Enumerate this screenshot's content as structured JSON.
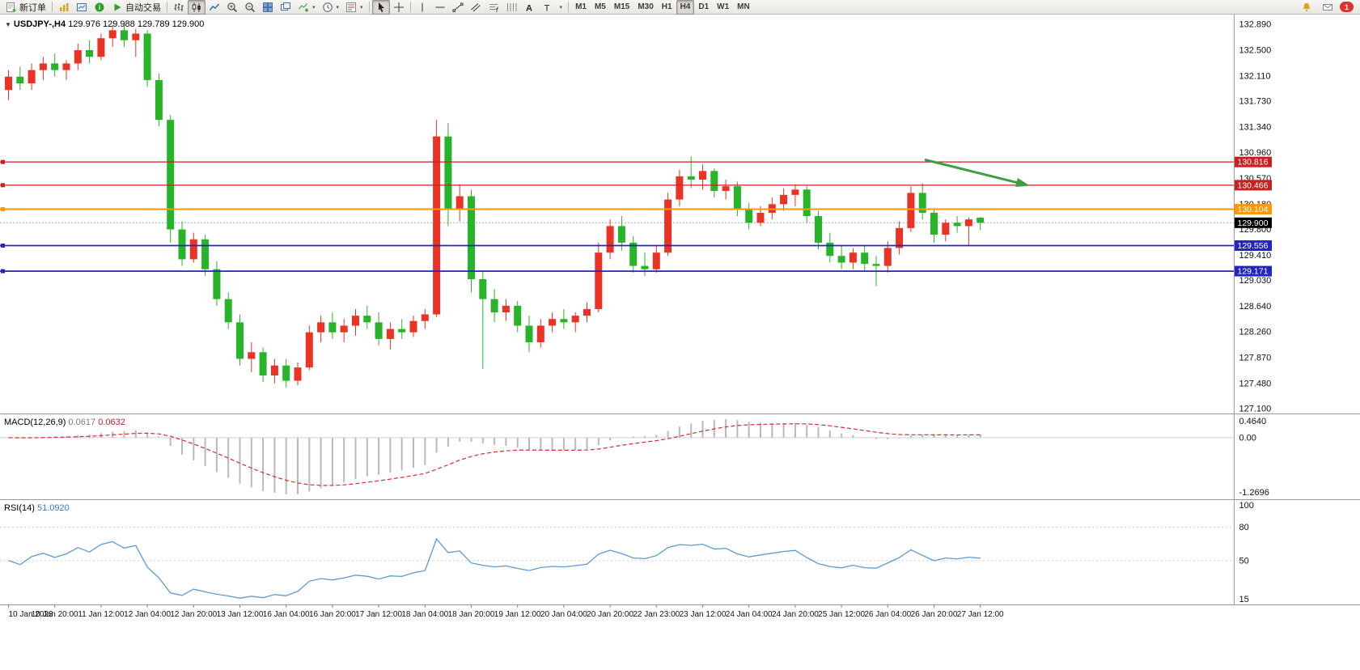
{
  "toolbar": {
    "new_order_label": "新订单",
    "autotrading_label": "自动交易",
    "timeframes": [
      "M1",
      "M5",
      "M15",
      "M30",
      "H1",
      "H4",
      "D1",
      "W1",
      "MN"
    ],
    "active_timeframe": "H4",
    "notification_count": "1"
  },
  "chart": {
    "title_symbol": "USDJPY-,H4",
    "title_ohlc": "129.976 129.988 129.789 129.900",
    "price_ticks": [
      "132.890",
      "132.500",
      "132.110",
      "131.730",
      "131.340",
      "130.960",
      "130.570",
      "130.180",
      "129.800",
      "129.410",
      "129.030",
      "128.640",
      "128.260",
      "127.870",
      "127.480",
      "127.100"
    ]
  },
  "current_price": {
    "value": 129.9,
    "label": "129.900",
    "color": "#000000"
  },
  "hlines": [
    {
      "price": 130.816,
      "label": "130.816",
      "color": "#c92121",
      "width": 1.2
    },
    {
      "price": 130.466,
      "label": "130.466",
      "color": "#c92121",
      "width": 1.2
    },
    {
      "price": 130.104,
      "label": "130.104",
      "color": "#ff9800",
      "width": 2
    },
    {
      "price": 129.556,
      "label": "129.556",
      "color": "#2424c4",
      "width": 1.8
    },
    {
      "price": 129.171,
      "label": "129.171",
      "color": "#2424c4",
      "width": 1.8
    }
  ],
  "trend_arrow": {
    "from_bar": 79.2,
    "from_price": 130.85,
    "to_bar": 88,
    "to_price": 130.47,
    "color": "#3f9e3f"
  },
  "colors": {
    "bull": "#ea3325",
    "bear": "#28b428",
    "macd_hist": "#b9b9b9",
    "macd_signal": "#d92b2b",
    "rsi_line": "#5b9bd5"
  },
  "indicators": {
    "macd": {
      "name": "MACD(12,26,9)",
      "value_main": "0.0617",
      "value_signal": "0.0632",
      "fast": 12,
      "slow": 26,
      "signal_period": 9,
      "axis": [
        "0.4640",
        "0.00",
        "-1.2696"
      ]
    },
    "rsi": {
      "name": "RSI(14)",
      "value": "51.0920",
      "period": 14,
      "axis": [
        "100",
        "80",
        "50",
        "15"
      ],
      "levels": [
        80,
        50
      ]
    }
  },
  "chart_data": {
    "type": "candlestick",
    "symbol": "USDJPY-",
    "timeframe": "H4",
    "label_every": 4,
    "time_labels": [
      "10 Jan 2023",
      "10 Jan 20:00",
      "11 Jan 12:00",
      "12 Jan 04:00",
      "12 Jan 20:00",
      "13 Jan 12:00",
      "16 Jan 04:00",
      "16 Jan 20:00",
      "17 Jan 12:00",
      "18 Jan 04:00",
      "18 Jan 20:00",
      "19 Jan 12:00",
      "20 Jan 04:00",
      "20 Jan 20:00",
      "22 Jan 23:00",
      "23 Jan 12:00",
      "24 Jan 04:00",
      "24 Jan 20:00",
      "25 Jan 12:00",
      "26 Jan 04:00",
      "26 Jan 20:00",
      "27 Jan 12:00"
    ],
    "candles": [
      [
        131.9,
        132.2,
        131.75,
        132.1
      ],
      [
        132.1,
        132.25,
        131.9,
        132.0
      ],
      [
        132.0,
        132.3,
        131.9,
        132.2
      ],
      [
        132.2,
        132.4,
        132.05,
        132.3
      ],
      [
        132.3,
        132.45,
        132.1,
        132.2
      ],
      [
        132.2,
        132.35,
        132.05,
        132.3
      ],
      [
        132.3,
        132.6,
        132.2,
        132.5
      ],
      [
        132.5,
        132.65,
        132.3,
        132.4
      ],
      [
        132.4,
        132.75,
        132.35,
        132.68
      ],
      [
        132.68,
        132.88,
        132.55,
        132.8
      ],
      [
        132.8,
        132.89,
        132.55,
        132.65
      ],
      [
        132.65,
        132.82,
        132.4,
        132.75
      ],
      [
        132.75,
        132.8,
        131.95,
        132.05
      ],
      [
        132.05,
        132.15,
        131.35,
        131.45
      ],
      [
        131.45,
        131.52,
        129.6,
        129.8
      ],
      [
        129.8,
        129.92,
        129.25,
        129.35
      ],
      [
        129.35,
        129.75,
        129.3,
        129.65
      ],
      [
        129.65,
        129.72,
        129.1,
        129.2
      ],
      [
        129.2,
        129.32,
        128.65,
        128.75
      ],
      [
        128.75,
        128.85,
        128.3,
        128.4
      ],
      [
        128.4,
        128.52,
        127.75,
        127.85
      ],
      [
        127.85,
        128.1,
        127.65,
        127.95
      ],
      [
        127.95,
        128.02,
        127.5,
        127.6
      ],
      [
        127.6,
        127.85,
        127.48,
        127.75
      ],
      [
        127.75,
        127.85,
        127.42,
        127.52
      ],
      [
        127.52,
        127.8,
        127.45,
        127.72
      ],
      [
        127.72,
        128.35,
        127.68,
        128.25
      ],
      [
        128.25,
        128.5,
        128.1,
        128.4
      ],
      [
        128.4,
        128.55,
        128.15,
        128.25
      ],
      [
        128.25,
        128.45,
        128.1,
        128.35
      ],
      [
        128.35,
        128.6,
        128.2,
        128.5
      ],
      [
        128.5,
        128.65,
        128.3,
        128.4
      ],
      [
        128.4,
        128.55,
        128.05,
        128.15
      ],
      [
        128.15,
        128.4,
        127.99,
        128.3
      ],
      [
        128.3,
        128.45,
        128.15,
        128.25
      ],
      [
        128.25,
        128.5,
        128.18,
        128.42
      ],
      [
        128.42,
        128.6,
        128.3,
        128.52
      ],
      [
        128.52,
        131.45,
        128.48,
        131.2
      ],
      [
        131.2,
        131.4,
        129.85,
        130.1
      ],
      [
        130.1,
        130.48,
        129.92,
        130.3
      ],
      [
        130.3,
        130.4,
        128.85,
        129.05
      ],
      [
        129.05,
        129.18,
        127.7,
        128.75
      ],
      [
        128.75,
        128.9,
        128.4,
        128.55
      ],
      [
        128.55,
        128.75,
        128.42,
        128.65
      ],
      [
        128.65,
        128.72,
        128.25,
        128.35
      ],
      [
        128.35,
        128.5,
        127.95,
        128.1
      ],
      [
        128.1,
        128.45,
        128.02,
        128.35
      ],
      [
        128.35,
        128.55,
        128.25,
        128.45
      ],
      [
        128.45,
        128.6,
        128.3,
        128.4
      ],
      [
        128.4,
        128.55,
        128.25,
        128.5
      ],
      [
        128.5,
        128.7,
        128.4,
        128.6
      ],
      [
        128.6,
        129.6,
        128.55,
        129.45
      ],
      [
        129.45,
        129.95,
        129.35,
        129.85
      ],
      [
        129.85,
        130.0,
        129.48,
        129.6
      ],
      [
        129.6,
        129.7,
        129.15,
        129.25
      ],
      [
        129.25,
        129.45,
        129.1,
        129.2
      ],
      [
        129.2,
        129.55,
        129.15,
        129.45
      ],
      [
        129.45,
        130.35,
        129.4,
        130.25
      ],
      [
        130.25,
        130.7,
        130.15,
        130.6
      ],
      [
        130.6,
        130.9,
        130.42,
        130.55
      ],
      [
        130.55,
        130.78,
        130.4,
        130.68
      ],
      [
        130.68,
        130.72,
        130.28,
        130.38
      ],
      [
        130.38,
        130.55,
        130.25,
        130.45
      ],
      [
        130.45,
        130.52,
        130.0,
        130.1
      ],
      [
        130.1,
        130.2,
        129.8,
        129.9
      ],
      [
        129.9,
        130.15,
        129.85,
        130.05
      ],
      [
        130.05,
        130.28,
        129.95,
        130.18
      ],
      [
        130.18,
        130.42,
        130.08,
        130.32
      ],
      [
        130.32,
        130.48,
        130.15,
        130.4
      ],
      [
        130.4,
        130.45,
        129.9,
        130.0
      ],
      [
        130.0,
        130.08,
        129.5,
        129.6
      ],
      [
        129.6,
        129.75,
        129.3,
        129.4
      ],
      [
        129.4,
        129.55,
        129.2,
        129.3
      ],
      [
        129.3,
        129.52,
        129.2,
        129.45
      ],
      [
        129.45,
        129.55,
        129.18,
        129.28
      ],
      [
        129.28,
        129.4,
        128.95,
        129.25
      ],
      [
        129.25,
        129.62,
        129.15,
        129.52
      ],
      [
        129.52,
        129.92,
        129.42,
        129.82
      ],
      [
        129.82,
        130.45,
        129.76,
        130.35
      ],
      [
        130.35,
        130.5,
        129.95,
        130.05
      ],
      [
        130.05,
        130.12,
        129.6,
        129.72
      ],
      [
        129.72,
        129.95,
        129.62,
        129.9
      ],
      [
        129.9,
        130.0,
        129.75,
        129.85
      ],
      [
        129.85,
        129.98,
        129.55,
        129.95
      ],
      [
        129.976,
        129.988,
        129.789,
        129.9
      ]
    ]
  }
}
